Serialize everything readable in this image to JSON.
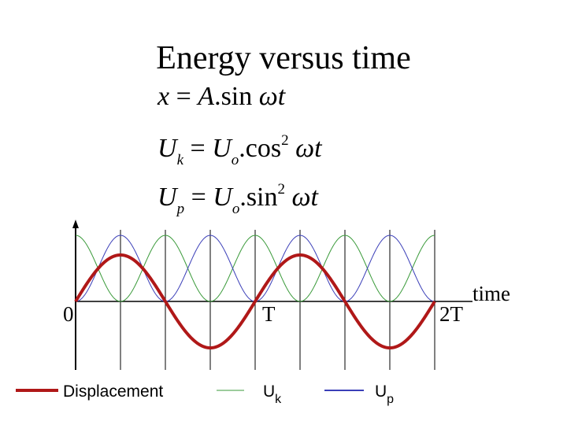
{
  "title": "Energy versus time",
  "equations": {
    "x": {
      "lhs": "x",
      "eq": "=",
      "A": "A",
      "dot": ".",
      "fn": "sin",
      "arg": "ωt"
    },
    "uk": {
      "lhs": "U",
      "lhs_sub": "k",
      "eq": "=",
      "coef": "U",
      "coef_sub": "o",
      "dot": ".",
      "fn": "cos",
      "pow": "2",
      "arg": "ωt"
    },
    "up": {
      "lhs": "U",
      "lhs_sub": "p",
      "eq": "=",
      "coef": "U",
      "coef_sub": "o",
      "dot": ".",
      "fn": "sin",
      "pow": "2",
      "arg": "ωt"
    }
  },
  "chart_data": {
    "type": "line",
    "title": "Energy versus time",
    "xlabel": "time",
    "x_ticks": [
      {
        "value": 0,
        "label": "0"
      },
      {
        "value": 1,
        "label": "T"
      },
      {
        "value": 2,
        "label": "2T"
      }
    ],
    "xlim": [
      0,
      2
    ],
    "ylim": [
      -1,
      1
    ],
    "x_unit": "periods",
    "gridlines_x": [
      0.25,
      0.5,
      0.75,
      1.0,
      1.25,
      1.5,
      1.75,
      2.0
    ],
    "series": [
      {
        "name": "Displacement",
        "function": "sin(2πt)",
        "color": "#b01818",
        "y_range": [
          -1,
          1
        ]
      },
      {
        "name": "Uk",
        "function": "cos²(2πt)",
        "color": "#3a9a3a",
        "y_range": [
          0,
          1
        ]
      },
      {
        "name": "Up",
        "function": "sin²(2πt)",
        "color": "#3b3fb8",
        "y_range": [
          0,
          1
        ]
      }
    ]
  },
  "legend": [
    {
      "label": "Displacement",
      "sub": "",
      "color": "#b01818"
    },
    {
      "label": "U",
      "sub": "k",
      "color": "#3a9a3a"
    },
    {
      "label": "U",
      "sub": "p",
      "color": "#3b3fb8"
    }
  ]
}
